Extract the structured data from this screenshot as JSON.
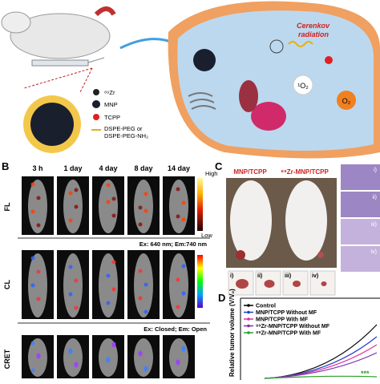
{
  "panel_a": {
    "legend": [
      "⁸⁹Zr",
      "MNP",
      "TCPP",
      "DSPE-PEG or",
      "DSPE-PEG-NH₂"
    ],
    "cerenkov": [
      "Cerenkov",
      "radiation"
    ],
    "singlet_oxygen": "¹O₂",
    "oxygen": "O₂"
  },
  "panel_b": {
    "label": "B",
    "timepoints": [
      "3 h",
      "1 day",
      "4 day",
      "8 day",
      "14 day"
    ],
    "rows": [
      {
        "label": "FL",
        "filter": "Ex: 640 nm; Em:740 nm"
      },
      {
        "label": "CL",
        "filter": "Ex: Closed; Em: Open"
      },
      {
        "label": "CRET"
      }
    ],
    "scale_high": "High",
    "scale_low": "Low"
  },
  "panel_c": {
    "label": "C",
    "groups": [
      "MNP/TCPP",
      "⁸⁹Zr-MNP/TCPP"
    ],
    "tumors": [
      "i)",
      "ii)",
      "iii)",
      "iv)"
    ],
    "histology": [
      "i)",
      "ii)",
      "iii)",
      "iv)"
    ]
  },
  "panel_d": {
    "label": "D",
    "legend": [
      "Control",
      "MNP/TCPP Without MF",
      "MNP/TCPP With MF",
      "⁸⁹Zr-MNP/TCPP Without MF",
      "⁸⁹Zr-MNP/TCPP With MF"
    ],
    "colors": [
      "#000000",
      "#1f3fd0",
      "#e0309a",
      "#7a2fb0",
      "#2aa02a"
    ],
    "y_label": "Relative tumor volume (V/V₀)",
    "significance": "***"
  }
}
